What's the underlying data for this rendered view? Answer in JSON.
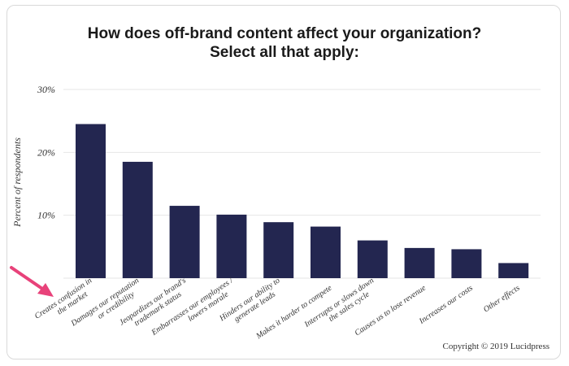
{
  "chart_data": {
    "type": "bar",
    "title": "How does off-brand content affect your organization?",
    "subtitle": "Select all that apply:",
    "ylabel": "Percent of respondents",
    "xlabel": "",
    "ylim": [
      0,
      30
    ],
    "yticks": [
      10,
      20,
      30
    ],
    "ytick_labels": [
      "10%",
      "20%",
      "30%"
    ],
    "grid": true,
    "bar_color": "#232650",
    "categories": [
      [
        "Creates confusion in",
        "the market"
      ],
      [
        "Damages our reputation",
        "or credibility"
      ],
      [
        "Jeopardizes our brand's",
        "trademark status"
      ],
      [
        "Embarrasses our employees /",
        "lowers morale"
      ],
      [
        "Hinders our ability to",
        "generate leads"
      ],
      [
        "Makes it harder to compete"
      ],
      [
        "Interrupts or slows down",
        "the sales cycle"
      ],
      [
        "Causes us to lose revenue"
      ],
      [
        "Increases our costs"
      ],
      [
        "Other effects"
      ]
    ],
    "values": [
      24.5,
      18.5,
      11.5,
      10.1,
      8.9,
      8.2,
      6.0,
      4.8,
      4.6,
      2.4
    ]
  },
  "copyright": "Copyright © 2019 Lucidpress",
  "annotation": {
    "arrow_color": "#e8427a"
  }
}
